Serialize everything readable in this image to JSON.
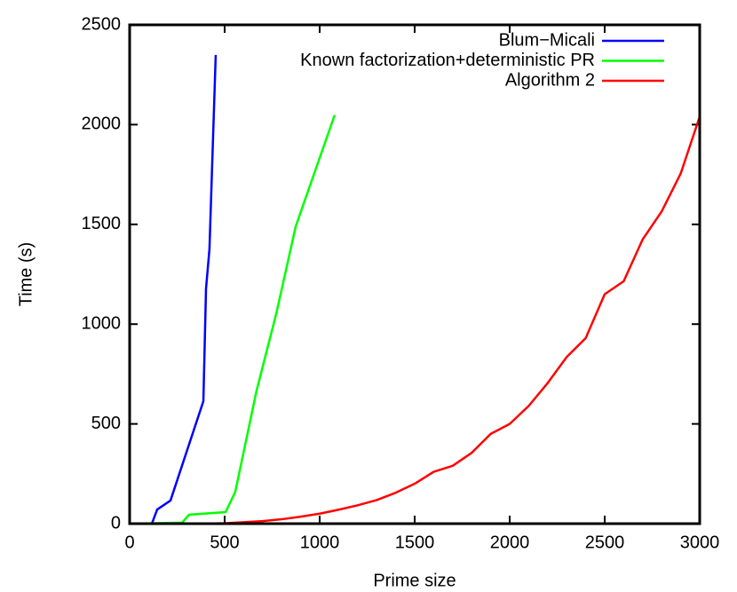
{
  "chart_data": {
    "type": "line",
    "xlabel": "Prime size",
    "ylabel": "Time (s)",
    "xlim": [
      0,
      3000
    ],
    "xticks": [
      0,
      500,
      1000,
      1500,
      2000,
      2500,
      3000
    ],
    "ylim": [
      0,
      2500
    ],
    "yticks": [
      0,
      500,
      1000,
      1500,
      2000,
      2500
    ],
    "legend": "top-right",
    "series": [
      {
        "name": "Blum−Micali",
        "color": "#0000ff",
        "x": [
          117,
          145,
          215,
          388,
          402,
          420,
          453
        ],
        "values": [
          0,
          71,
          116,
          614,
          1179,
          1375,
          2349
        ]
      },
      {
        "name": "Known factorization+deterministic PR",
        "color": "#00ff00",
        "x": [
          19,
          276,
          313,
          505,
          556,
          668,
          771,
          874,
          1079
        ],
        "values": [
          0,
          5,
          45,
          58,
          160,
          667,
          1050,
          1490,
          2048
        ]
      },
      {
        "name": "Algorithm 2",
        "color": "#ff0000",
        "x": [
          400,
          500,
          600,
          700,
          800,
          900,
          1000,
          1100,
          1200,
          1300,
          1400,
          1500,
          1600,
          1700,
          1800,
          1900,
          2000,
          2100,
          2200,
          2300,
          2400,
          2500,
          2600,
          2700,
          2800,
          2900,
          3000
        ],
        "values": [
          0,
          2,
          7,
          13,
          22,
          35,
          50,
          70,
          92,
          118,
          155,
          200,
          260,
          290,
          355,
          450,
          500,
          590,
          705,
          835,
          930,
          1150,
          1215,
          1425,
          1565,
          1755,
          2040
        ]
      }
    ]
  }
}
